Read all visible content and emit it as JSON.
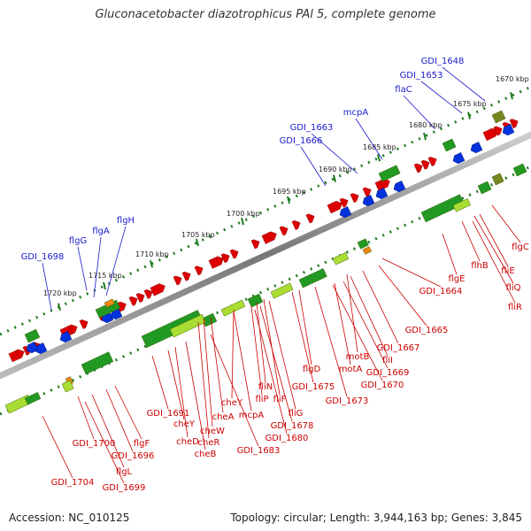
{
  "title": "Gluconacetobacter diazotrophicus PAl 5, complete genome",
  "footer": {
    "accession": "Accession: NC_010125",
    "topology": "Topology: circular; Length: 3,944,163 bp; Genes: 3,845"
  },
  "scale_labels": [
    "1670 kbp",
    "1675 kbp",
    "1680 kbp",
    "1685 kbp",
    "1690 kbp",
    "1695 kbp",
    "1700 kbp",
    "1705 kbp",
    "1710 kbp",
    "1715 kbp",
    "1720 kbp"
  ],
  "upper_gene_labels": [
    "GDI_1648",
    "GDI_1653",
    "flaC",
    "mcpA",
    "GDI_1663",
    "GDI_1666",
    "flgH",
    "flgA",
    "flgG",
    "GDI_1698"
  ],
  "lower_gene_labels": [
    "flgC",
    "fliE",
    "flhB",
    "fliQ",
    "fliR",
    "flgE",
    "GDI_1664",
    "GDI_1665",
    "GDI_1667",
    "motB",
    "fliI",
    "motA",
    "GDI_1669",
    "GDI_1670",
    "flgD",
    "GDI_1675",
    "GDI_1673",
    "fliN",
    "fliP",
    "fliF",
    "fliG",
    "cheY",
    "GDI_1678",
    "GDI_1680",
    "mcpA",
    "cheA",
    "cheW",
    "cheR",
    "GDI_1691",
    "cheY",
    "cheD",
    "cheB",
    "GDI_1683",
    "flgF",
    "GDI_1696",
    "GDI_1700",
    "flgL",
    "GDI_1699",
    "GDI_1704"
  ],
  "colors": {
    "forward_strand": "#dd0000",
    "reverse_strand": "#0033dd",
    "gene_label_upper": "#1a1acc",
    "gene_label_lower": "#cc0000",
    "cog_green": "#229922",
    "cog_light": "#aadd33",
    "cog_orange": "#ee8811",
    "cog_olive": "#778822",
    "backbone": "#888888",
    "tick_green": "#1f7a1f"
  }
}
